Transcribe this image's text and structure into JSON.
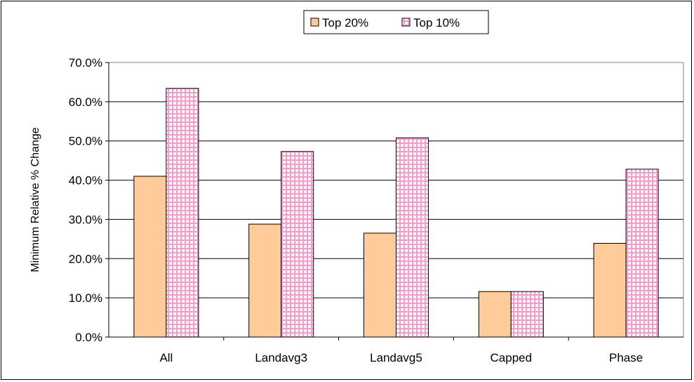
{
  "chart_data": {
    "type": "bar",
    "categories": [
      "All",
      "Landavg3",
      "Landavg5",
      "Capped",
      "Phase"
    ],
    "series": [
      {
        "name": "Top 20%",
        "values": [
          41.0,
          28.8,
          26.5,
          11.6,
          23.9
        ],
        "color": "#ffcc99",
        "pattern": "solid"
      },
      {
        "name": "Top 10%",
        "values": [
          63.4,
          47.3,
          50.8,
          11.6,
          42.8
        ],
        "color": "#ff99cc",
        "pattern": "grid"
      }
    ],
    "ylabel": "Minimum Relative % Change",
    "xlabel": "",
    "ylim": [
      0,
      70
    ],
    "yticks": [
      "0.0%",
      "10.0%",
      "20.0%",
      "30.0%",
      "40.0%",
      "50.0%",
      "60.0%",
      "70.0%"
    ],
    "grid": true,
    "legend_position": "top-center"
  }
}
